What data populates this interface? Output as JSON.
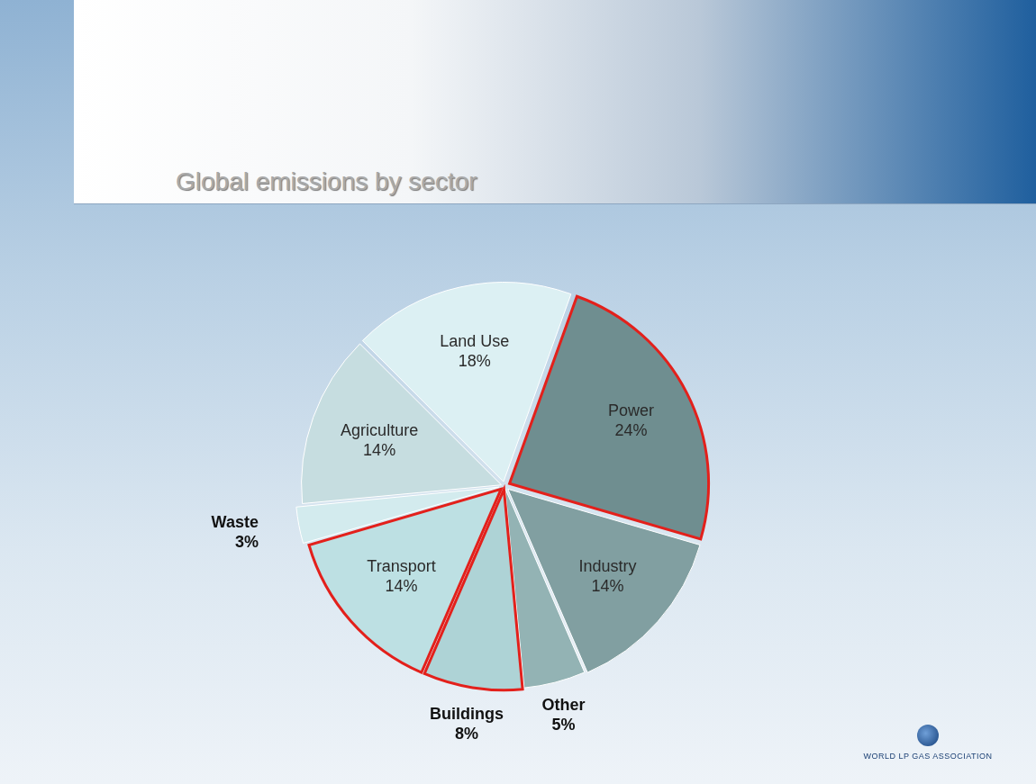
{
  "chart_data": {
    "type": "pie",
    "title": "Global emissions by sector",
    "categories": [
      "Land Use",
      "Power",
      "Industry",
      "Other",
      "Buildings",
      "Transport",
      "Waste",
      "Agriculture"
    ],
    "values": [
      18,
      24,
      14,
      5,
      8,
      14,
      3,
      14
    ],
    "value_labels": [
      "18%",
      "24%",
      "14%",
      "5%",
      "8%",
      "14%",
      "3%",
      "14%"
    ],
    "colors": [
      "#dcf0f3",
      "#6f8e90",
      "#819fa1",
      "#93b3b4",
      "#aed3d6",
      "#bde0e3",
      "#d3ebee",
      "#c6dde0"
    ],
    "data_labels": true,
    "annotations": [
      "WORLD LP GAS ASSOCIATION"
    ]
  }
}
